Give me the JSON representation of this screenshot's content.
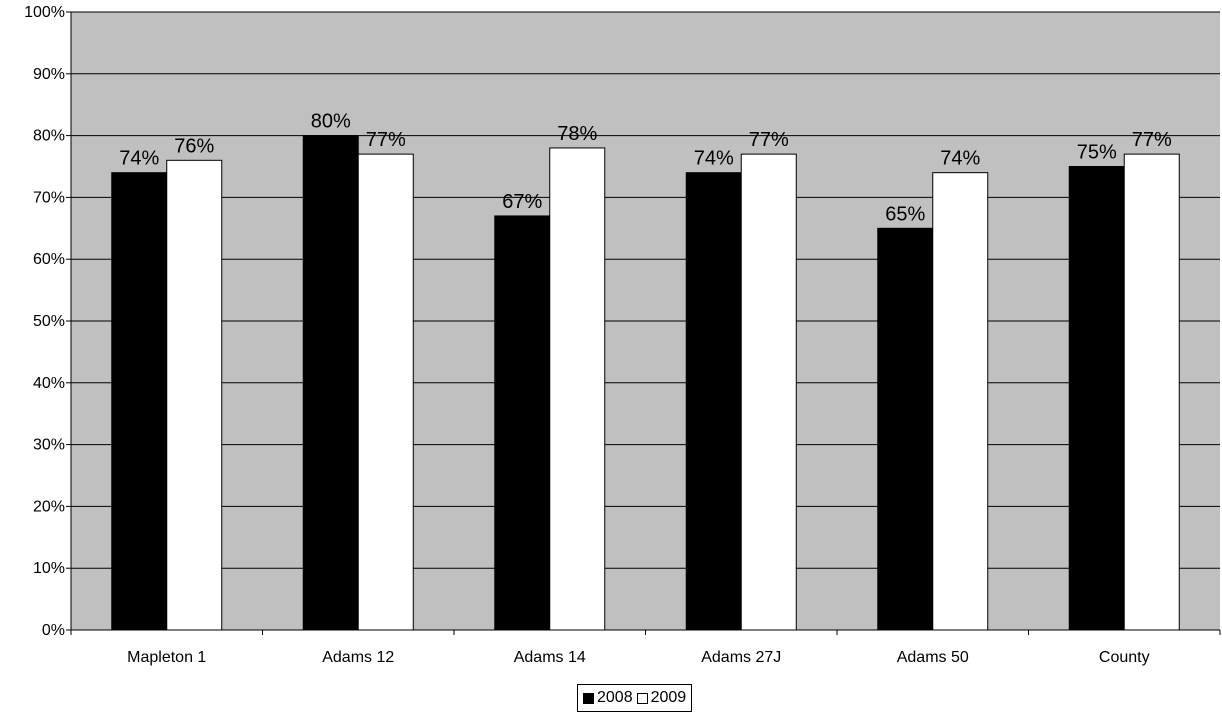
{
  "chart_data": {
    "type": "bar",
    "categories": [
      "Mapleton 1",
      "Adams 12",
      "Adams 14",
      "Adams 27J",
      "Adams 50",
      "County"
    ],
    "series": [
      {
        "name": "2008",
        "values": [
          74,
          80,
          67,
          74,
          65,
          75
        ],
        "labels": [
          "74%",
          "80%",
          "67%",
          "74%",
          "65%",
          "75%"
        ],
        "color": "#000000"
      },
      {
        "name": "2009",
        "values": [
          76,
          77,
          78,
          77,
          74,
          77
        ],
        "labels": [
          "76%",
          "77%",
          "78%",
          "77%",
          "74%",
          "77%"
        ],
        "color": "#ffffff"
      }
    ],
    "title": "",
    "xlabel": "",
    "ylabel": "",
    "ylim": [
      0,
      100
    ],
    "yticks": [
      0,
      10,
      20,
      30,
      40,
      50,
      60,
      70,
      80,
      90,
      100
    ],
    "ytick_labels": [
      "0%",
      "10%",
      "20%",
      "30%",
      "40%",
      "50%",
      "60%",
      "70%",
      "80%",
      "90%",
      "100%"
    ],
    "grid": true,
    "plot_background": "#c0c0c0",
    "legend_position": "bottom"
  }
}
